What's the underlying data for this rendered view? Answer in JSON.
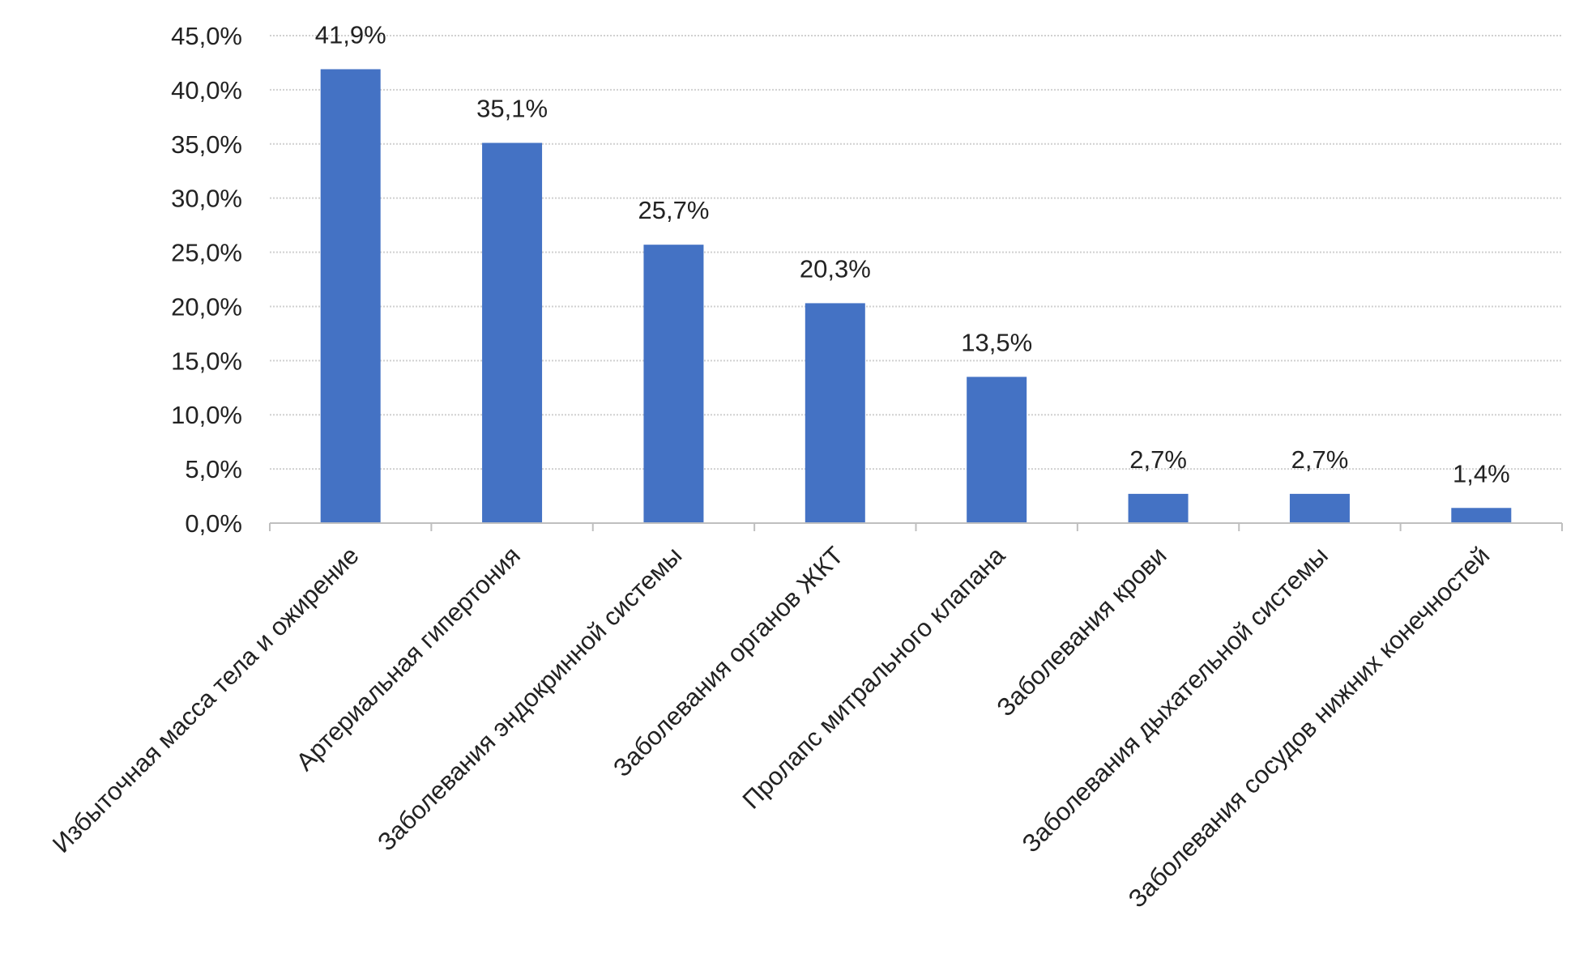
{
  "chart_data": {
    "type": "bar",
    "categories": [
      "Избыточная масса тела и ожирение",
      "Артериальная гипертония",
      "Заболевания эндокринной системы",
      "Заболевания органов ЖКТ",
      "Пролапс митрального клапана",
      "Заболевания крови",
      "Заболевания дыхательной системы",
      "Заболевания сосудов нижних конечностей"
    ],
    "values": [
      41.9,
      35.1,
      25.7,
      20.3,
      13.5,
      2.7,
      2.7,
      1.4
    ],
    "value_labels": [
      "41,9%",
      "35,1%",
      "25,7%",
      "20,3%",
      "13,5%",
      "2,7%",
      "2,7%",
      "1,4%"
    ],
    "y_ticks": [
      0,
      5,
      10,
      15,
      20,
      25,
      30,
      35,
      40,
      45
    ],
    "y_tick_labels": [
      "0,0%",
      "5,0%",
      "10,0%",
      "15,0%",
      "20,0%",
      "25,0%",
      "30,0%",
      "35,0%",
      "40,0%",
      "45,0%"
    ],
    "ylim": [
      0,
      45
    ],
    "title": "",
    "xlabel": "",
    "ylabel": "",
    "grid": true,
    "legend": "none",
    "colors": {
      "bar": "#4472C4",
      "grid": "#d0d0d0",
      "axis": "#bfbfbf",
      "text": "#222222"
    }
  }
}
